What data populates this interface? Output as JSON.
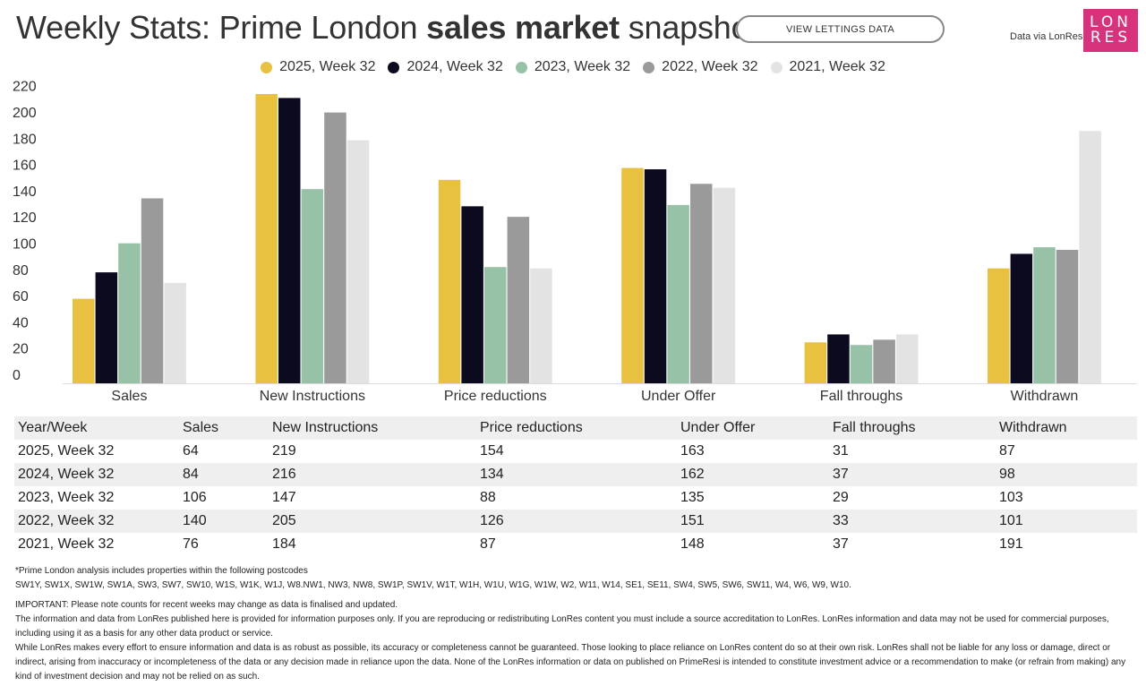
{
  "header": {
    "title_prefix": "Weekly Stats: Prime London ",
    "title_bold": "sales market",
    "title_suffix": " snapshot",
    "lettings_button": "VIEW LETTINGS DATA",
    "data_via": "Data via LonRes",
    "logo_line1": "LON",
    "logo_line2": "RES"
  },
  "colors": {
    "2025": "#e8c140",
    "2024": "#0b0a1f",
    "2023": "#97c2a8",
    "2022": "#9a9a9a",
    "2021": "#e3e3e3",
    "logo": "#d6337c"
  },
  "chart_data": {
    "type": "bar",
    "categories": [
      "Sales",
      "New Instructions",
      "Price reductions",
      "Under Offer",
      "Fall throughs",
      "Withdrawn"
    ],
    "series": [
      {
        "name": "2025, Week 32",
        "values": [
          64,
          219,
          154,
          163,
          31,
          87
        ]
      },
      {
        "name": "2024, Week 32",
        "values": [
          84,
          216,
          134,
          162,
          37,
          98
        ]
      },
      {
        "name": "2023, Week 32",
        "values": [
          106,
          147,
          88,
          135,
          29,
          103
        ]
      },
      {
        "name": "2022, Week 32",
        "values": [
          140,
          205,
          126,
          151,
          33,
          101
        ]
      },
      {
        "name": "2021, Week 32",
        "values": [
          76,
          184,
          87,
          148,
          37,
          191
        ]
      }
    ],
    "yticks": [
      0,
      20,
      40,
      60,
      80,
      100,
      120,
      140,
      160,
      180,
      200,
      220
    ],
    "ylim": [
      0,
      220
    ],
    "title": "",
    "xlabel": "",
    "ylabel": "",
    "legend_position": "top-center",
    "grid": false
  },
  "table": {
    "headers": [
      "Year/Week",
      "Sales",
      "New Instructions",
      "Price reductions",
      "Under Offer",
      "Fall throughs",
      "Withdrawn"
    ],
    "rows": [
      [
        "2025, Week 32",
        "64",
        "219",
        "154",
        "163",
        "31",
        "87"
      ],
      [
        "2024, Week 32",
        "84",
        "216",
        "134",
        "162",
        "37",
        "98"
      ],
      [
        "2023, Week 32",
        "106",
        "147",
        "88",
        "135",
        "29",
        "103"
      ],
      [
        "2022, Week 32",
        "140",
        "205",
        "126",
        "151",
        "33",
        "101"
      ],
      [
        "2021, Week 32",
        "76",
        "184",
        "87",
        "148",
        "37",
        "191"
      ]
    ]
  },
  "notes": {
    "postcodes_intro": "*Prime London analysis includes properties within the following postcodes",
    "postcodes": "SW1Y, SW1X, SW1W, SW1A, SW3, SW7, SW10, W1S, W1K, W1J, W8.NW1, NW3, NW8, SW1P, SW1V, W1T, W1H, W1U, W1G, W1W, W2, W11, W14, SE1, SE11, SW4, SW5, SW6, SW11, W4, W6, W9, W10.",
    "important": "IMPORTANT: Please note counts for recent weeks may change as data is finalised and updated.",
    "disclaimer1": "The information and data from LonRes published here is provided for information purposes only. If you are reproducing or redistributing LonRes content you must include a source accreditation to LonRes. LonRes information and data may not be used for commercial purposes, including using it as a basis for any other data product or service.",
    "disclaimer2": "While LonRes makes every effort to ensure information and data is as robust as possible, its accuracy or completeness cannot be guaranteed. Those looking to place reliance on LonRes content do so at their own risk. LonRes shall not be liable for any loss or damage, direct or indirect, arising from inaccuracy or incompleteness of the data or any decision made in reliance upon the data. None of the LonRes information or data on published on PrimeResi is intended to constitute investment advice or a recommendation to make (or refrain from making) any kind of investment decision and may not be relied on as such."
  }
}
